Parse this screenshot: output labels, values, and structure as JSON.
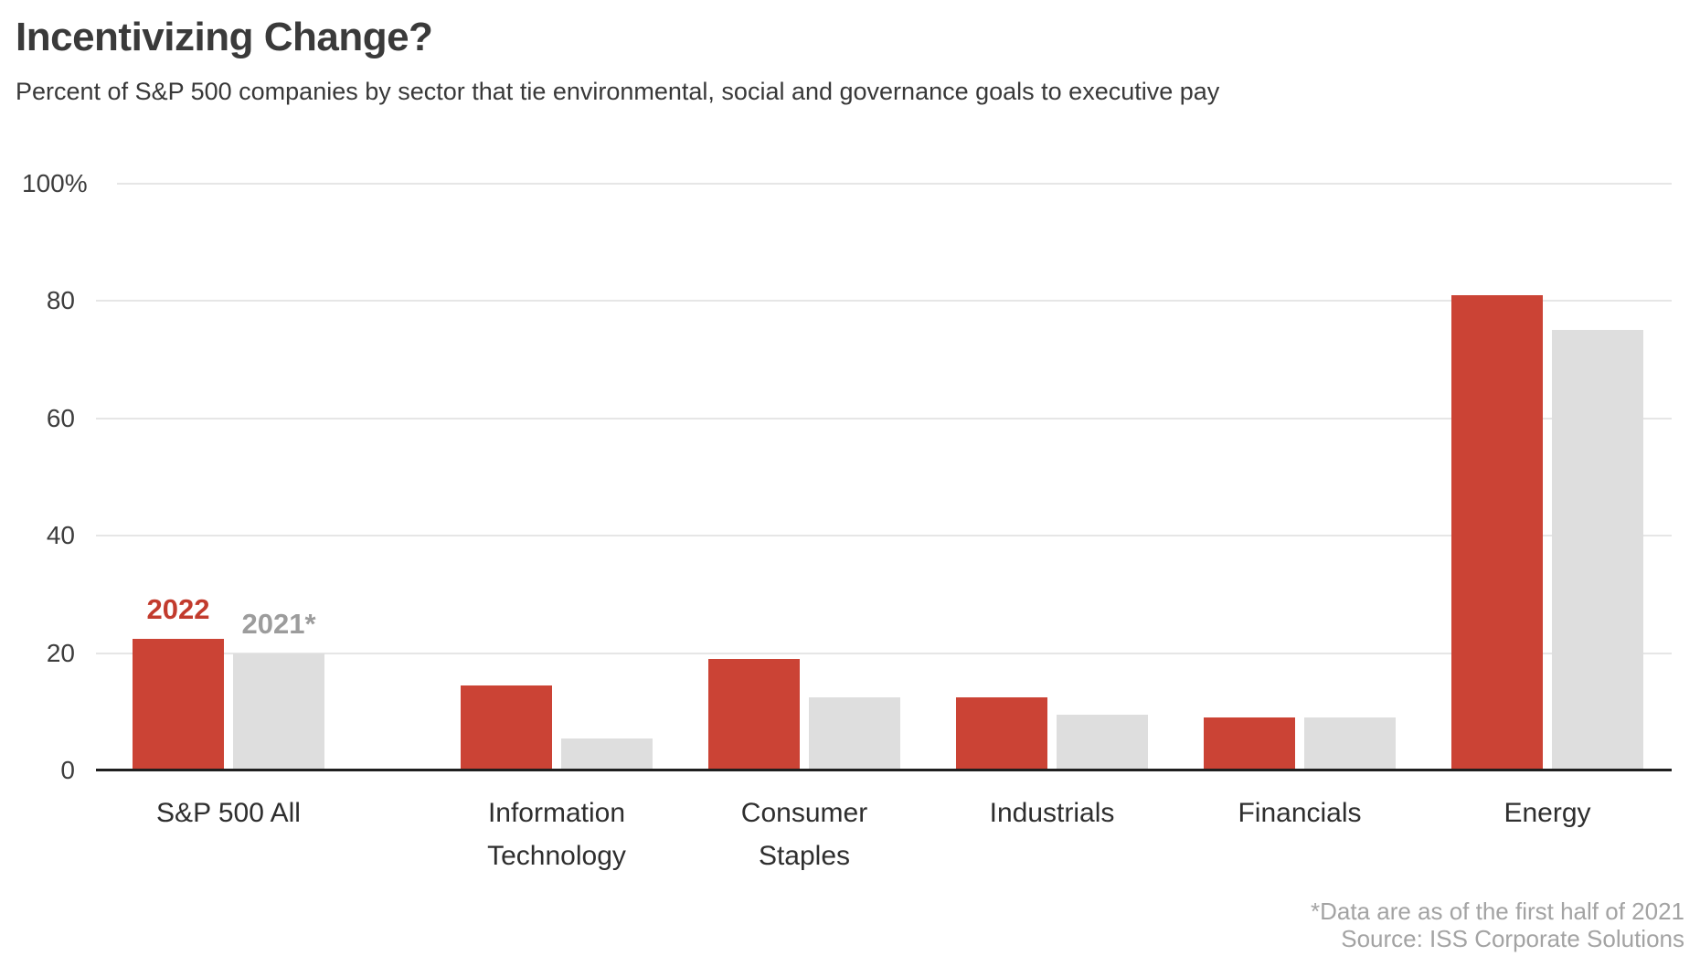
{
  "header": {
    "title": "Incentivizing Change?",
    "subtitle": "Percent of S&P 500 companies by sector that tie environmental, social and governance goals to executive pay"
  },
  "footnote": {
    "line1": "*Data are as of the first half of 2021",
    "line2": "Source: ISS Corporate Solutions"
  },
  "chart_data": {
    "type": "bar",
    "title": "Incentivizing Change?",
    "subtitle": "Percent of S&P 500 companies by sector that tie environmental, social and governance goals to executive pay",
    "categories": [
      "S&P 500 All",
      "Information\nTechnology",
      "Consumer\nStaples",
      "Industrials",
      "Financials",
      "Energy"
    ],
    "series": [
      {
        "name": "2022",
        "color": "#cb4335",
        "label_color": "#c23b2d",
        "values": [
          22.5,
          14.5,
          19,
          12.5,
          9,
          81
        ]
      },
      {
        "name": "2021*",
        "color": "#dedede",
        "label_color": "#9c9c9c",
        "values": [
          20,
          5.5,
          12.5,
          9.5,
          9,
          75
        ]
      }
    ],
    "ylabel": "",
    "xlabel": "",
    "ylim": [
      0,
      100
    ],
    "yticks": [
      0,
      20,
      40,
      60,
      80,
      100
    ],
    "ytick_labels": [
      "0",
      "20",
      "40",
      "60",
      "80",
      "100%"
    ],
    "grid": true,
    "legend_position": "above-first-group",
    "colors": {
      "grid": "#e6e6e6",
      "axis": "#1f1f1f",
      "tick_text": "#3d3d3d",
      "category_text": "#2e2e2e",
      "title_text": "#3a3a3a",
      "footnote_text": "#a3a3a3"
    }
  }
}
